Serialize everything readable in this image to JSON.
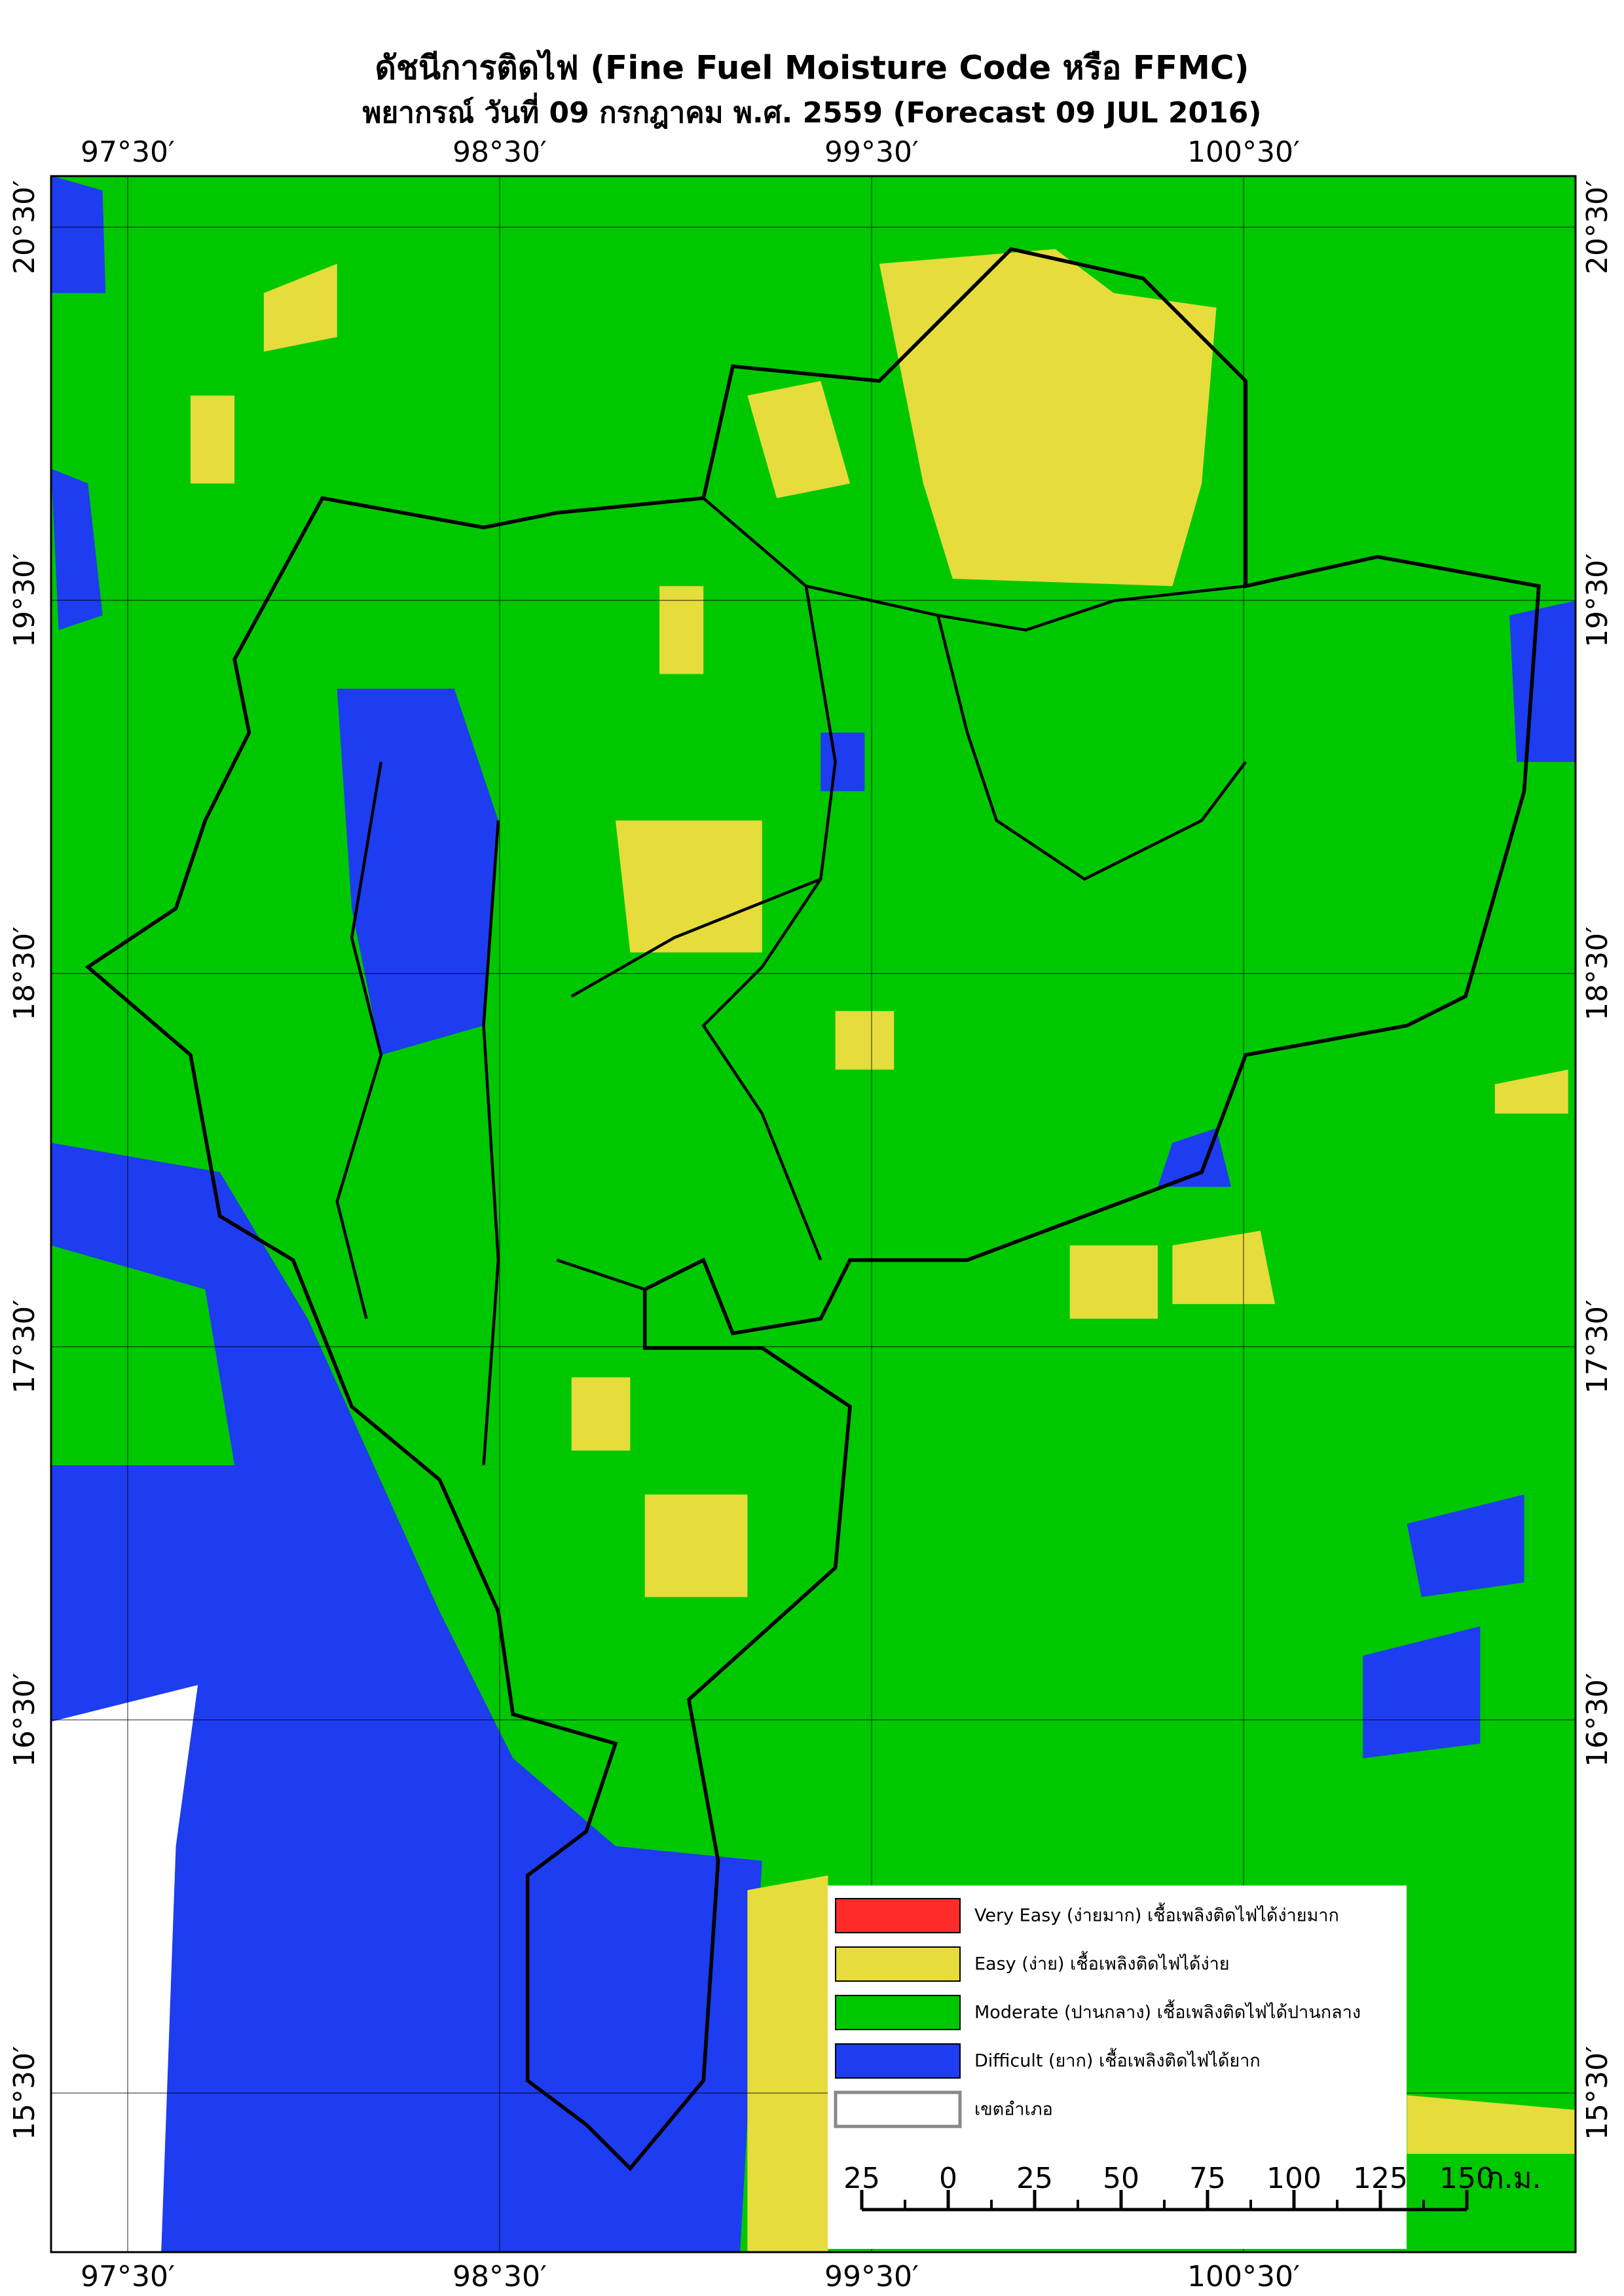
{
  "title": "ดัชนีการติดไฟ (Fine Fuel Moisture Code หรือ FFMC)",
  "subtitle": "พยากรณ์ วันที่ 09 กรกฎาคม พ.ศ. 2559 (Forecast 09 JUL 2016)",
  "grid": {
    "longitudes": [
      "97°30′",
      "98°30′",
      "99°30′",
      "100°30′"
    ],
    "latitudes": [
      "20°30′",
      "19°30′",
      "18°30′",
      "17°30′",
      "16°30′",
      "15°30′"
    ]
  },
  "legend": [
    {
      "label": "Very Easy (ง่ายมาก) เชื้อเพลิงติดไฟได้ง่ายมาก",
      "color": "#ff2a2a"
    },
    {
      "label": "Easy (ง่าย) เชื้อเพลิงติดไฟได้ง่าย",
      "color": "#e6dc3c"
    },
    {
      "label": "Moderate (ปานกลาง) เชื้อเพลิงติดไฟได้ปานกลาง",
      "color": "#00c800"
    },
    {
      "label": "Difficult (ยาก) เชื้อเพลิงติดไฟได้ยาก",
      "color": "#1e3cf0"
    },
    {
      "label": "เขตอำเภอ",
      "color": "#ffffff"
    }
  ],
  "scale_bar": {
    "labels": [
      "25",
      "0",
      "25",
      "50",
      "75",
      "100",
      "125",
      "150"
    ],
    "unit": "ก.ม."
  }
}
